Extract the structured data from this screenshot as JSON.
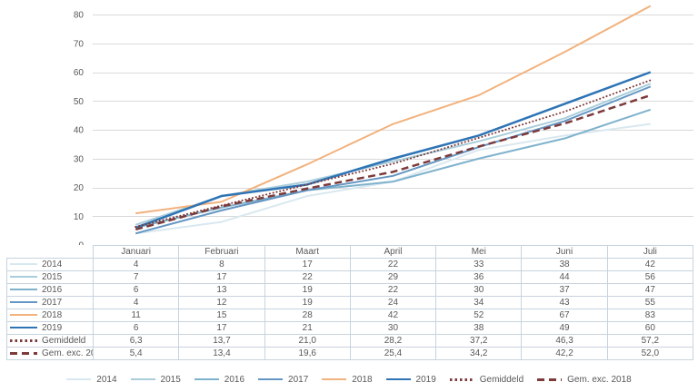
{
  "styles": {
    "background": "#ffffff",
    "grid_color": "#d9d9d9",
    "text_color": "#595959",
    "table_border_color": "#c7d3de"
  },
  "chart_data": {
    "type": "line",
    "title": "",
    "xlabel": "",
    "ylabel": "",
    "grid": true,
    "legend_position": "bottom",
    "data_table_shown": true,
    "ylim": [
      0,
      80
    ],
    "yticks": [
      "0",
      "10",
      "20",
      "30",
      "40",
      "50",
      "60",
      "70",
      "80"
    ],
    "categories": [
      "Januari",
      "Februari",
      "Maart",
      "April",
      "Mei",
      "Juni",
      "Juli"
    ],
    "series": [
      {
        "name": "2014",
        "color": "#d9e8f0",
        "style": "solid",
        "width": 2,
        "values": [
          4,
          8,
          17,
          22,
          33,
          38,
          42
        ],
        "labels": [
          "4",
          "8",
          "17",
          "22",
          "33",
          "38",
          "42"
        ]
      },
      {
        "name": "2015",
        "color": "#a9cdda",
        "style": "solid",
        "width": 2,
        "values": [
          7,
          17,
          22,
          29,
          36,
          44,
          56
        ],
        "labels": [
          "7",
          "17",
          "22",
          "29",
          "36",
          "44",
          "56"
        ]
      },
      {
        "name": "2016",
        "color": "#7fb2cd",
        "style": "solid",
        "width": 2,
        "values": [
          6,
          13,
          19,
          22,
          30,
          37,
          47
        ],
        "labels": [
          "6",
          "13",
          "19",
          "22",
          "30",
          "37",
          "47"
        ]
      },
      {
        "name": "2017",
        "color": "#6496c3",
        "style": "solid",
        "width": 2,
        "values": [
          4,
          12,
          19,
          24,
          34,
          43,
          55
        ],
        "labels": [
          "4",
          "12",
          "19",
          "24",
          "34",
          "43",
          "55"
        ]
      },
      {
        "name": "2018",
        "color": "#f2b27d",
        "style": "solid",
        "width": 2,
        "values": [
          11,
          15,
          28,
          42,
          52,
          67,
          83
        ],
        "labels": [
          "11",
          "15",
          "28",
          "42",
          "52",
          "67",
          "83"
        ]
      },
      {
        "name": "2019",
        "color": "#2e74b5",
        "style": "solid",
        "width": 2.5,
        "values": [
          6,
          17,
          21,
          30,
          38,
          49,
          60
        ],
        "labels": [
          "6",
          "17",
          "21",
          "30",
          "38",
          "49",
          "60"
        ]
      },
      {
        "name": "Gemiddeld",
        "color": "#7d3a3a",
        "style": "dotted",
        "width": 2,
        "values": [
          6.3,
          13.7,
          21.0,
          28.2,
          37.2,
          46.3,
          57.2
        ],
        "labels": [
          "6,3",
          "13,7",
          "21,0",
          "28,2",
          "37,2",
          "46,3",
          "57,2"
        ]
      },
      {
        "name": "Gem. exc. 2018",
        "color": "#7d3a3a",
        "style": "dashed",
        "width": 2.5,
        "values": [
          5.4,
          13.4,
          19.6,
          25.4,
          34.2,
          42.2,
          52.0
        ],
        "labels": [
          "5,4",
          "13,4",
          "19,6",
          "25,4",
          "34,2",
          "42,2",
          "52,0"
        ]
      }
    ]
  }
}
